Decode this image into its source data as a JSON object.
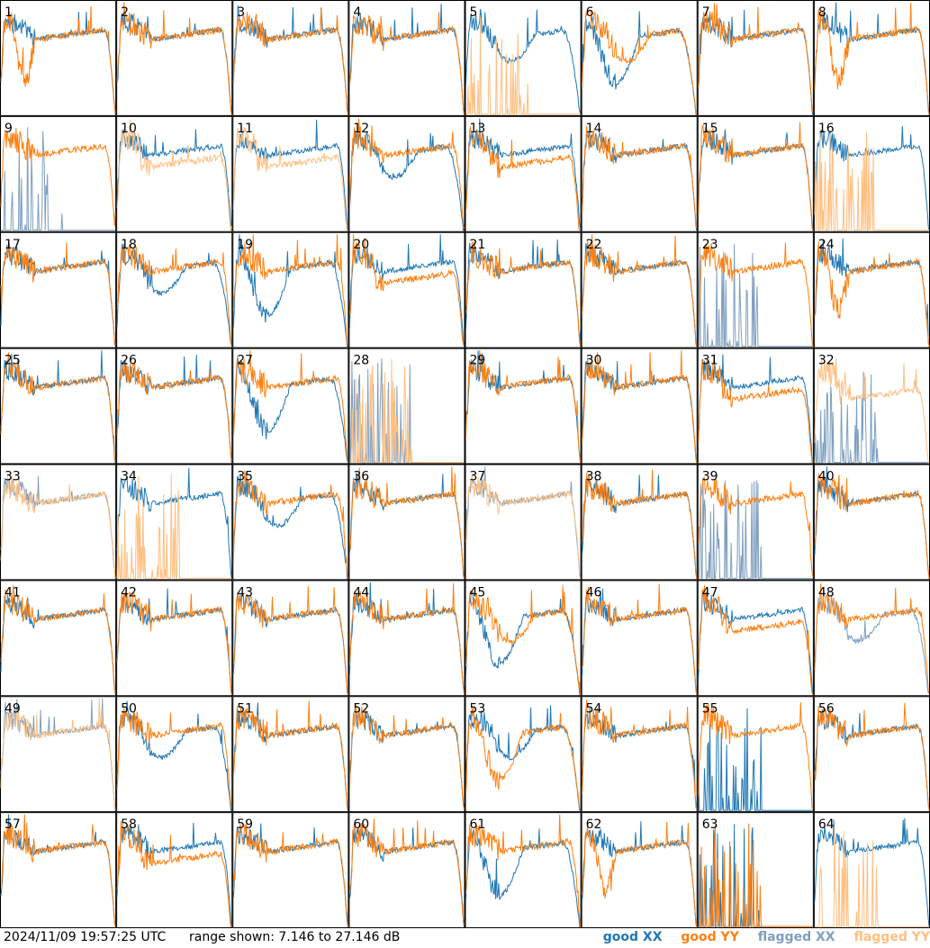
{
  "footer": {
    "timestamp": "2024/11/09 19:57:25 UTC",
    "range": "range shown: 7.146 to 27.146 dB"
  },
  "legend": {
    "good_xx": "good XX",
    "good_yy": "good YY",
    "flagged_xx": "flagged XX",
    "flagged_yy": "flagged YY"
  },
  "colors": {
    "good_xx": "#1f77b4",
    "good_yy": "#ff7f0e",
    "flagged_xx": "#7f9fbf",
    "flagged_yy": "#ffbf80"
  },
  "chart_data": {
    "type": "line",
    "grid_rows": 8,
    "grid_cols": 8,
    "ylim_db": [
      7.146,
      27.146
    ],
    "panels": [
      {
        "label": "1",
        "xx": "good",
        "yy": "good",
        "xx_shape": "A",
        "yy_shape": "E"
      },
      {
        "label": "2",
        "xx": "good",
        "yy": "good",
        "xx_shape": "A",
        "yy_shape": "A"
      },
      {
        "label": "3",
        "xx": "good",
        "yy": "good",
        "xx_shape": "A",
        "yy_shape": "A"
      },
      {
        "label": "4",
        "xx": "good",
        "yy": "good",
        "xx_shape": "A",
        "yy_shape": "A"
      },
      {
        "label": "5",
        "xx": "good",
        "yy": "flagged",
        "xx_shape": "B",
        "yy_shape": "F"
      },
      {
        "label": "6",
        "xx": "good",
        "yy": "good",
        "xx_shape": "C",
        "yy_shape": "B"
      },
      {
        "label": "7",
        "xx": "good",
        "yy": "good",
        "xx_shape": "A",
        "yy_shape": "A"
      },
      {
        "label": "8",
        "xx": "good",
        "yy": "good",
        "xx_shape": "A",
        "yy_shape": "E"
      },
      {
        "label": "9",
        "xx": "flagged",
        "yy": "good",
        "xx_shape": "F",
        "yy_shape": "A"
      },
      {
        "label": "10",
        "xx": "good",
        "yy": "flagged",
        "xx_shape": "A",
        "yy_shape": "D"
      },
      {
        "label": "11",
        "xx": "good",
        "yy": "flagged",
        "xx_shape": "A",
        "yy_shape": "D"
      },
      {
        "label": "12",
        "xx": "good",
        "yy": "good",
        "xx_shape": "B",
        "yy_shape": "A"
      },
      {
        "label": "13",
        "xx": "good",
        "yy": "good",
        "xx_shape": "A",
        "yy_shape": "D"
      },
      {
        "label": "14",
        "xx": "good",
        "yy": "good",
        "xx_shape": "A",
        "yy_shape": "A"
      },
      {
        "label": "15",
        "xx": "good",
        "yy": "good",
        "xx_shape": "A",
        "yy_shape": "A"
      },
      {
        "label": "16",
        "xx": "good",
        "yy": "flagged",
        "xx_shape": "A",
        "yy_shape": "F"
      },
      {
        "label": "17",
        "xx": "good",
        "yy": "good",
        "xx_shape": "A",
        "yy_shape": "A"
      },
      {
        "label": "18",
        "xx": "good",
        "yy": "good",
        "xx_shape": "B",
        "yy_shape": "A"
      },
      {
        "label": "19",
        "xx": "good",
        "yy": "good",
        "xx_shape": "C",
        "yy_shape": "A"
      },
      {
        "label": "20",
        "xx": "good",
        "yy": "good",
        "xx_shape": "A",
        "yy_shape": "D"
      },
      {
        "label": "21",
        "xx": "good",
        "yy": "good",
        "xx_shape": "A",
        "yy_shape": "A"
      },
      {
        "label": "22",
        "xx": "good",
        "yy": "good",
        "xx_shape": "A",
        "yy_shape": "A"
      },
      {
        "label": "23",
        "xx": "flagged",
        "yy": "good",
        "xx_shape": "F",
        "yy_shape": "A"
      },
      {
        "label": "24",
        "xx": "good",
        "yy": "good",
        "xx_shape": "A",
        "yy_shape": "E"
      },
      {
        "label": "25",
        "xx": "good",
        "yy": "good",
        "xx_shape": "A",
        "yy_shape": "A"
      },
      {
        "label": "26",
        "xx": "good",
        "yy": "good",
        "xx_shape": "A",
        "yy_shape": "A"
      },
      {
        "label": "27",
        "xx": "good",
        "yy": "good",
        "xx_shape": "C",
        "yy_shape": "A"
      },
      {
        "label": "28",
        "xx": "flagged",
        "yy": "flagged",
        "xx_shape": "F",
        "yy_shape": "F"
      },
      {
        "label": "29",
        "xx": "good",
        "yy": "good",
        "xx_shape": "A",
        "yy_shape": "A"
      },
      {
        "label": "30",
        "xx": "good",
        "yy": "good",
        "xx_shape": "A",
        "yy_shape": "A"
      },
      {
        "label": "31",
        "xx": "good",
        "yy": "good",
        "xx_shape": "A",
        "yy_shape": "D"
      },
      {
        "label": "32",
        "xx": "flagged",
        "yy": "flagged",
        "xx_shape": "F",
        "yy_shape": "D"
      },
      {
        "label": "33",
        "xx": "flagged",
        "yy": "flagged",
        "xx_shape": "A",
        "yy_shape": "A"
      },
      {
        "label": "34",
        "xx": "good",
        "yy": "flagged",
        "xx_shape": "A",
        "yy_shape": "F"
      },
      {
        "label": "35",
        "xx": "good",
        "yy": "good",
        "xx_shape": "B",
        "yy_shape": "A"
      },
      {
        "label": "36",
        "xx": "good",
        "yy": "good",
        "xx_shape": "A",
        "yy_shape": "A"
      },
      {
        "label": "37",
        "xx": "flagged",
        "yy": "flagged",
        "xx_shape": "A",
        "yy_shape": "A"
      },
      {
        "label": "38",
        "xx": "good",
        "yy": "good",
        "xx_shape": "A",
        "yy_shape": "A"
      },
      {
        "label": "39",
        "xx": "flagged",
        "yy": "good",
        "xx_shape": "F",
        "yy_shape": "A"
      },
      {
        "label": "40",
        "xx": "good",
        "yy": "good",
        "xx_shape": "A",
        "yy_shape": "A"
      },
      {
        "label": "41",
        "xx": "good",
        "yy": "good",
        "xx_shape": "A",
        "yy_shape": "A"
      },
      {
        "label": "42",
        "xx": "good",
        "yy": "good",
        "xx_shape": "A",
        "yy_shape": "A"
      },
      {
        "label": "43",
        "xx": "good",
        "yy": "good",
        "xx_shape": "A",
        "yy_shape": "A"
      },
      {
        "label": "44",
        "xx": "good",
        "yy": "good",
        "xx_shape": "A",
        "yy_shape": "A"
      },
      {
        "label": "45",
        "xx": "good",
        "yy": "good",
        "xx_shape": "C",
        "yy_shape": "B"
      },
      {
        "label": "46",
        "xx": "good",
        "yy": "good",
        "xx_shape": "A",
        "yy_shape": "A"
      },
      {
        "label": "47",
        "xx": "good",
        "yy": "good",
        "xx_shape": "A",
        "yy_shape": "D"
      },
      {
        "label": "48",
        "xx": "flagged",
        "yy": "good",
        "xx_shape": "B",
        "yy_shape": "A"
      },
      {
        "label": "49",
        "xx": "flagged",
        "yy": "flagged",
        "xx_shape": "A",
        "yy_shape": "A"
      },
      {
        "label": "50",
        "xx": "good",
        "yy": "good",
        "xx_shape": "B",
        "yy_shape": "A"
      },
      {
        "label": "51",
        "xx": "good",
        "yy": "good",
        "xx_shape": "A",
        "yy_shape": "A"
      },
      {
        "label": "52",
        "xx": "good",
        "yy": "good",
        "xx_shape": "A",
        "yy_shape": "A"
      },
      {
        "label": "53",
        "xx": "good",
        "yy": "good",
        "xx_shape": "B",
        "yy_shape": "C"
      },
      {
        "label": "54",
        "xx": "good",
        "yy": "good",
        "xx_shape": "A",
        "yy_shape": "A"
      },
      {
        "label": "55",
        "xx": "good",
        "yy": "good",
        "xx_shape": "F",
        "yy_shape": "A"
      },
      {
        "label": "56",
        "xx": "good",
        "yy": "good",
        "xx_shape": "A",
        "yy_shape": "A"
      },
      {
        "label": "57",
        "xx": "good",
        "yy": "good",
        "xx_shape": "A",
        "yy_shape": "A"
      },
      {
        "label": "58",
        "xx": "good",
        "yy": "good",
        "xx_shape": "A",
        "yy_shape": "D"
      },
      {
        "label": "59",
        "xx": "good",
        "yy": "good",
        "xx_shape": "A",
        "yy_shape": "A"
      },
      {
        "label": "60",
        "xx": "good",
        "yy": "good",
        "xx_shape": "A",
        "yy_shape": "A"
      },
      {
        "label": "61",
        "xx": "good",
        "yy": "good",
        "xx_shape": "C",
        "yy_shape": "A"
      },
      {
        "label": "62",
        "xx": "good",
        "yy": "good",
        "xx_shape": "A",
        "yy_shape": "E"
      },
      {
        "label": "63",
        "xx": "good",
        "yy": "good",
        "xx_shape": "F",
        "yy_shape": "F"
      },
      {
        "label": "64",
        "xx": "good",
        "yy": "flagged",
        "xx_shape": "A",
        "yy_shape": "F"
      }
    ]
  }
}
